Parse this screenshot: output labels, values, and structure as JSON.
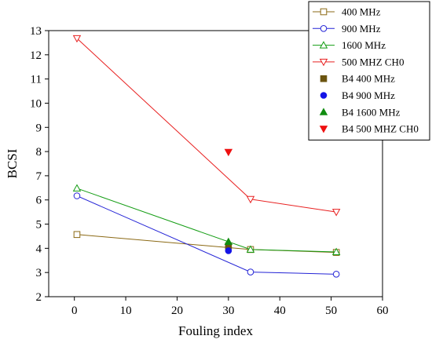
{
  "chart_data": {
    "type": "line",
    "xlabel": "Fouling index",
    "ylabel": "BCSI",
    "xlim": [
      -5,
      60
    ],
    "ylim": [
      2,
      13
    ],
    "xticks": [
      0,
      10,
      20,
      30,
      40,
      50,
      60
    ],
    "yticks": [
      2,
      3,
      4,
      5,
      6,
      7,
      8,
      9,
      10,
      11,
      12,
      13
    ],
    "legend_position": "top-right",
    "series": [
      {
        "name": "400 MHz",
        "kind": "line",
        "marker": "square-open",
        "color": "#8b6914",
        "x": [
          0.5,
          34.3,
          51
        ],
        "y": [
          4.57,
          3.95,
          3.83
        ]
      },
      {
        "name": "900 MHz",
        "kind": "line",
        "marker": "circle-open",
        "color": "#2424d6",
        "x": [
          0.5,
          34.3,
          51
        ],
        "y": [
          6.17,
          3.02,
          2.93
        ]
      },
      {
        "name": "1600 MHz",
        "kind": "line",
        "marker": "triangle-up-open",
        "color": "#129c12",
        "x": [
          0.5,
          34.3,
          51
        ],
        "y": [
          6.48,
          3.95,
          3.85
        ]
      },
      {
        "name": "500 MHZ CH0",
        "kind": "line",
        "marker": "triangle-down-open",
        "color": "#e82020",
        "x": [
          0.5,
          34.3,
          51
        ],
        "y": [
          12.68,
          6.03,
          5.5
        ]
      },
      {
        "name": "B4 400 MHz",
        "kind": "point",
        "marker": "square-filled",
        "color": "#6b5410",
        "x": [
          30
        ],
        "y": [
          4.1
        ]
      },
      {
        "name": "B4 900 MHz",
        "kind": "point",
        "marker": "circle-filled",
        "color": "#1414e6",
        "x": [
          30
        ],
        "y": [
          3.9
        ]
      },
      {
        "name": "B4 1600 MHz",
        "kind": "point",
        "marker": "triangle-up-filled",
        "color": "#108c10",
        "x": [
          30
        ],
        "y": [
          4.27
        ]
      },
      {
        "name": "B4 500 MHZ CH0",
        "kind": "point",
        "marker": "triangle-down-filled",
        "color": "#ee1111",
        "x": [
          30
        ],
        "y": [
          7.98
        ]
      }
    ]
  }
}
